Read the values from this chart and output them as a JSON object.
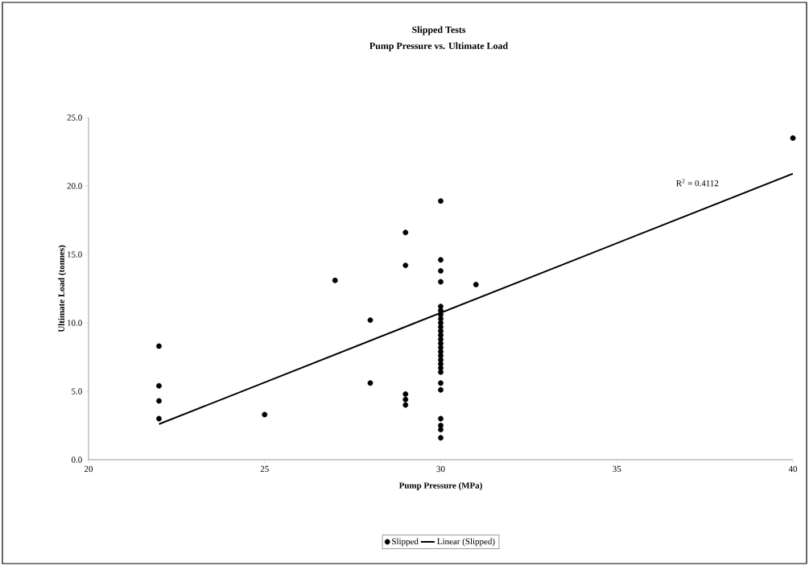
{
  "chart_data": {
    "type": "scatter",
    "title": "Slipped Tests",
    "subtitle": "Pump Pressure vs. Ultimate Load",
    "xlabel": "Pump Pressure (MPa)",
    "ylabel": "Ultimate Load (tonnes)",
    "xlim": [
      20,
      40
    ],
    "ylim": [
      0,
      25
    ],
    "xticks": [
      20,
      25,
      30,
      35,
      40
    ],
    "yticks": [
      {
        "value": 0,
        "label": "0.0"
      },
      {
        "value": 5,
        "label": "5.0"
      },
      {
        "value": 10,
        "label": "10.0"
      },
      {
        "value": 15,
        "label": "15.0"
      },
      {
        "value": 20,
        "label": "20.0"
      },
      {
        "value": 25,
        "label": "25.0"
      }
    ],
    "grid": false,
    "legend": "bottom",
    "marker": "circle",
    "series": [
      {
        "name": "Slipped",
        "color": "#000000",
        "x": [
          22,
          22,
          22,
          22,
          25,
          27,
          28,
          28,
          29,
          29,
          29,
          29,
          29,
          30,
          30,
          30,
          30,
          30,
          30,
          30,
          30,
          30,
          30,
          30,
          30,
          30,
          30,
          30,
          30,
          30,
          30,
          30,
          30,
          30,
          30,
          30,
          30,
          30,
          30,
          30,
          31,
          40
        ],
        "values": [
          8.3,
          5.4,
          4.3,
          3.0,
          3.3,
          13.1,
          10.2,
          5.6,
          16.6,
          14.2,
          4.8,
          4.4,
          4.0,
          18.9,
          14.6,
          13.8,
          13.0,
          11.2,
          10.9,
          10.6,
          10.3,
          10.0,
          9.7,
          9.4,
          9.1,
          8.8,
          8.5,
          8.2,
          7.9,
          7.6,
          7.3,
          7.0,
          6.7,
          6.4,
          5.6,
          5.1,
          3.0,
          2.5,
          1.6,
          2.2,
          12.8,
          23.5
        ]
      },
      {
        "name": "Linear (Slipped)",
        "type": "line",
        "marker": "none",
        "color": "#000000",
        "line_style": "solid",
        "x": [
          22,
          40
        ],
        "values": [
          2.6,
          20.9
        ]
      }
    ],
    "annotations": [
      "R$^{2}$ = 0.4112"
    ]
  }
}
